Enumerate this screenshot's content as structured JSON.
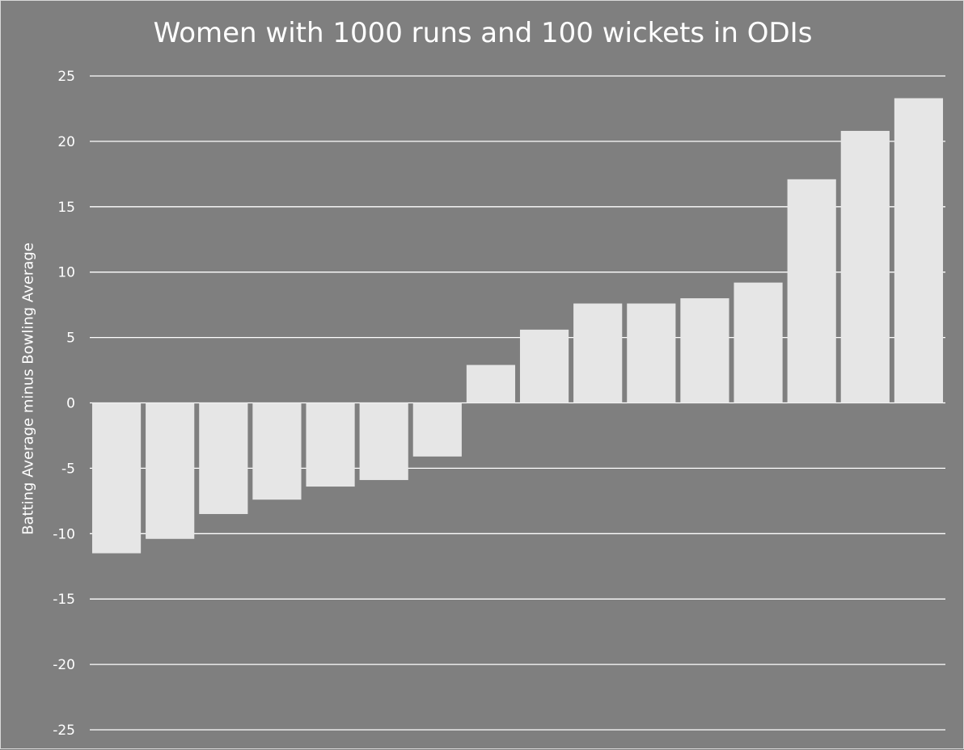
{
  "chart_data": {
    "type": "bar",
    "title": "Women with 1000 runs and 100 wickets in ODIs",
    "xlabel": "",
    "ylabel": "Batting Average minus Bowling Average",
    "ylim": [
      -25,
      25
    ],
    "yticks": [
      25,
      20,
      15,
      10,
      5,
      0,
      -5,
      -10,
      -15,
      -20,
      -25
    ],
    "grid": true,
    "values": [
      -11.5,
      -10.4,
      -8.5,
      -7.4,
      -6.4,
      -5.9,
      -4.1,
      2.9,
      5.6,
      7.6,
      7.6,
      8.0,
      9.2,
      17.1,
      20.8,
      23.3
    ],
    "colors": {
      "background": "#7f7f7f",
      "bar": "#e6e6e6",
      "grid": "#ffffff",
      "text": "#ffffff"
    }
  }
}
